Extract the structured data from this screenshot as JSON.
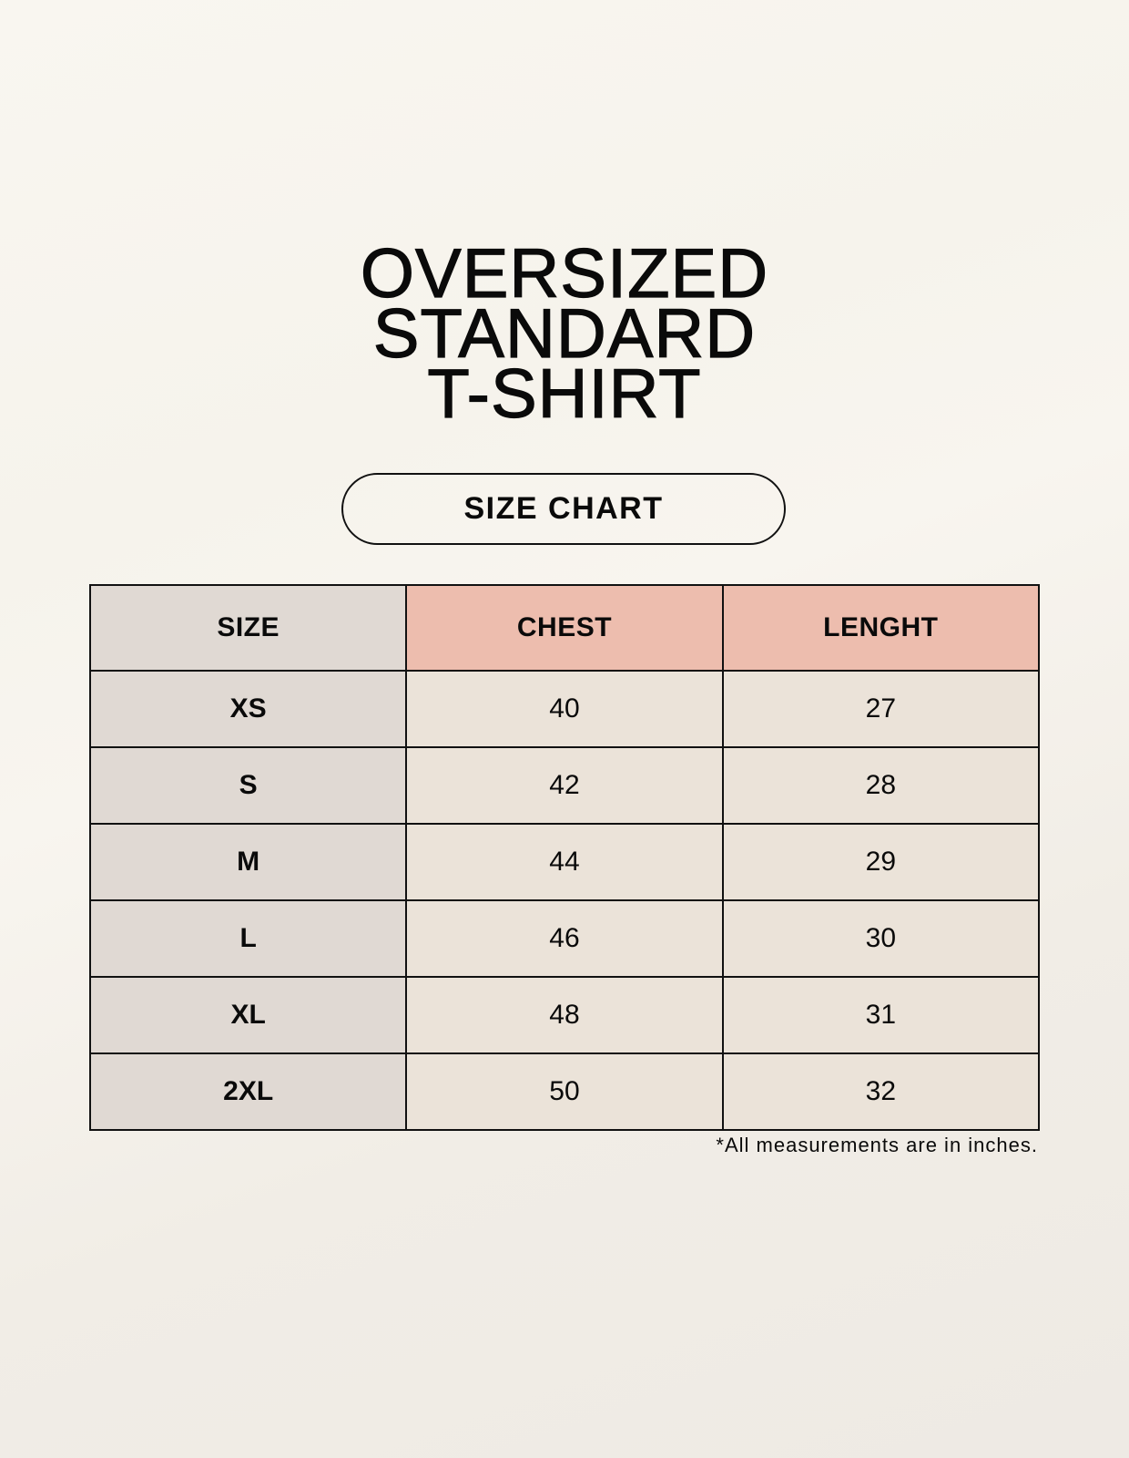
{
  "title_lines": [
    "OVERSIZED",
    "STANDARD",
    "T-SHIRT"
  ],
  "badge": "SIZE CHART",
  "table": {
    "headers": [
      "SIZE",
      "CHEST",
      "LENGHT"
    ],
    "rows": [
      [
        "XS",
        "40",
        "27"
      ],
      [
        "S",
        "42",
        "28"
      ],
      [
        "M",
        "44",
        "29"
      ],
      [
        "L",
        "46",
        "30"
      ],
      [
        "XL",
        "48",
        "31"
      ],
      [
        "2XL",
        "50",
        "32"
      ]
    ]
  },
  "footnote": "*All measurements are in inches.",
  "colors": {
    "header_accent": "#edbdae",
    "size_column": "#e0d9d3",
    "cell": "#ebe3d9"
  }
}
